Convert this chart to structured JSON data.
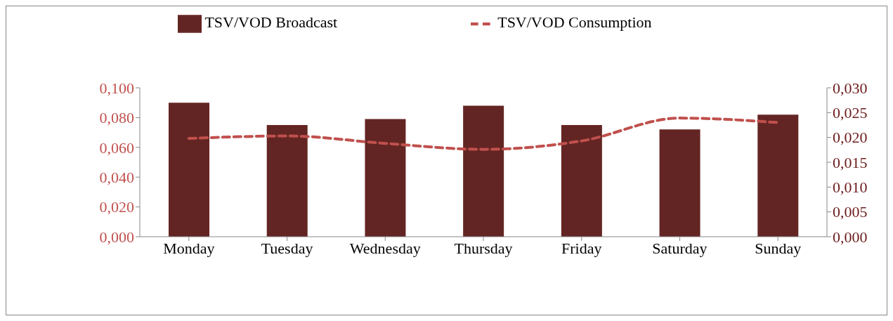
{
  "chart_data": {
    "type": "bar",
    "categories": [
      "Monday",
      "Tuesday",
      "Wednesday",
      "Thursday",
      "Friday",
      "Saturday",
      "Sunday"
    ],
    "series": [
      {
        "name": "TSV/VOD Broadcast",
        "color": "#632523",
        "values": [
          0.09,
          0.075,
          0.079,
          0.088,
          0.075,
          0.072,
          0.082
        ]
      },
      {
        "name": "TSV/VOD Consumption",
        "type": "line",
        "axis": "y2",
        "color": "#c0504d",
        "line_style": "dashed",
        "values": [
          0.0198,
          0.0203,
          0.0188,
          0.0176,
          0.0193,
          0.0239,
          0.023
        ]
      }
    ],
    "ylim": [
      0,
      0.1
    ],
    "yticks": [
      {
        "value": 0,
        "label": "0,000"
      },
      {
        "value": 0.02,
        "label": "0,020"
      },
      {
        "value": 0.04,
        "label": "0,040"
      },
      {
        "value": 0.06,
        "label": "0,060"
      },
      {
        "value": 0.08,
        "label": "0,080"
      },
      {
        "value": 0.1,
        "label": "0,100"
      }
    ],
    "y2lim": [
      0,
      0.03
    ],
    "y2ticks": [
      {
        "value": 0,
        "label": "0,000"
      },
      {
        "value": 0.005,
        "label": "0,005"
      },
      {
        "value": 0.01,
        "label": "0,010"
      },
      {
        "value": 0.015,
        "label": "0,015"
      },
      {
        "value": 0.02,
        "label": "0,020"
      },
      {
        "value": 0.025,
        "label": "0,025"
      },
      {
        "value": 0.03,
        "label": "0,030"
      }
    ],
    "legend": "top",
    "marker": "none"
  }
}
